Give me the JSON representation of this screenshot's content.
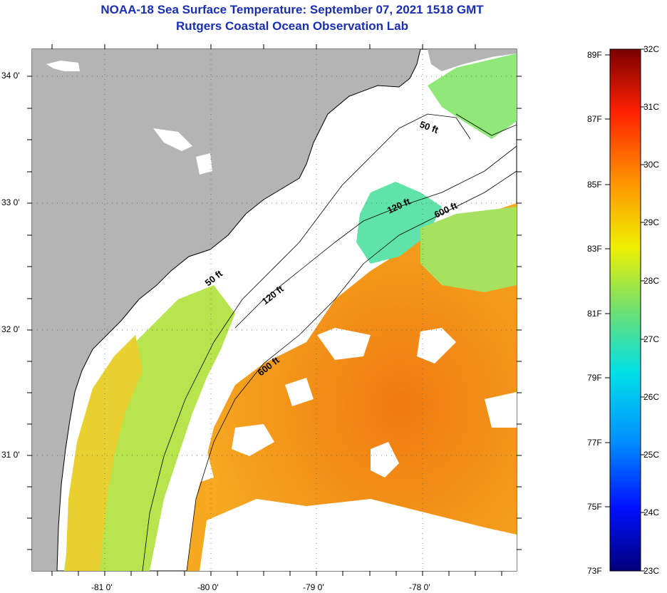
{
  "header": {
    "title": "NOAA-18 Sea Surface Temperature:  September 07, 2021 1518 GMT",
    "subtitle": "Rutgers Coastal Ocean Observation Lab"
  },
  "axes": {
    "lat_labels": [
      "34 0'",
      "33 0'",
      "32 0'",
      "31 0'"
    ],
    "lon_labels": [
      "-81 0'",
      "-80 0'",
      "-79 0'",
      "-78 0'"
    ]
  },
  "contours": {
    "labels": [
      "50 ft",
      "120 ft",
      "600 ft",
      "50 ft",
      "120 ft",
      "600 ft"
    ]
  },
  "colorbar": {
    "fahrenheit": [
      "89F",
      "87F",
      "85F",
      "83F",
      "81F",
      "79F",
      "77F",
      "75F",
      "73F"
    ],
    "celsius": [
      "32C",
      "31C",
      "30C",
      "29C",
      "28C",
      "27C",
      "26C",
      "25C",
      "24C",
      "23C"
    ]
  },
  "colors": {
    "land": "#b4b4b4",
    "cloud": "#ffffff",
    "warm_sst": "#f28a14",
    "mid_sst": "#c8e850",
    "cool_sst": "#5fe3a0"
  }
}
